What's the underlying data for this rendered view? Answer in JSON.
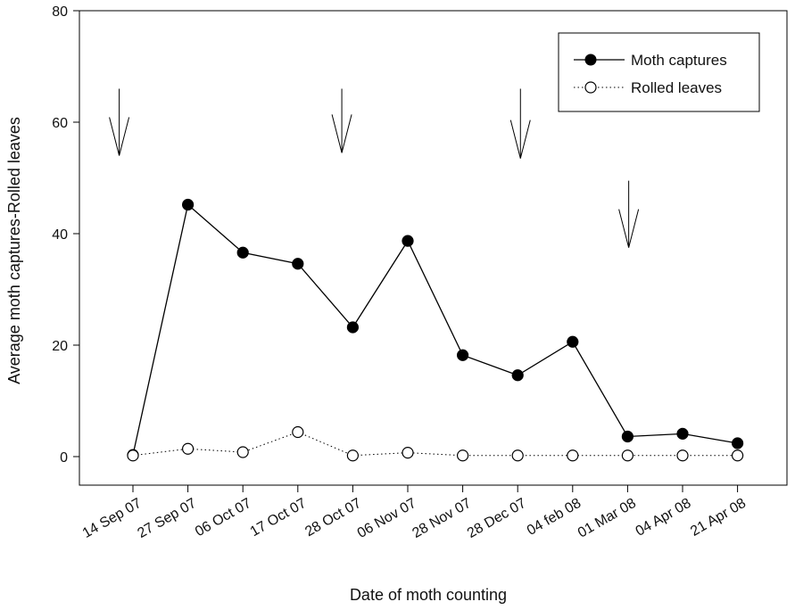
{
  "chart_data": {
    "type": "line",
    "xlabel": "Date of moth counting",
    "ylabel": "Average moth captures-Rolled leaves",
    "ylim": [
      0,
      80
    ],
    "yticks": [
      0,
      20,
      40,
      60,
      80
    ],
    "grid": false,
    "legend_position": "top-right",
    "categories": [
      "14 Sep 07",
      "27 Sep 07",
      "06 Oct 07",
      "17 Oct 07",
      "28 Oct 07",
      "06 Nov 07",
      "28 Nov 07",
      "28 Dec 07",
      "04 feb 08",
      "01 Mar 08",
      "04 Apr 08",
      "21 Apr 08"
    ],
    "series": [
      {
        "name": "Moth captures",
        "marker": "filled-circle",
        "line_style": "solid",
        "color": "#000000",
        "values": [
          0.3,
          45.2,
          36.6,
          34.6,
          23.2,
          38.7,
          18.2,
          14.6,
          20.6,
          3.6,
          4.1,
          2.4
        ]
      },
      {
        "name": "Rolled leaves",
        "marker": "open-circle",
        "line_style": "dotted",
        "color": "#000000",
        "values": [
          0.2,
          1.4,
          0.8,
          4.4,
          0.2,
          0.7,
          0.2,
          0.2,
          0.2,
          0.2,
          0.2,
          0.2
        ]
      }
    ],
    "annotations": [
      {
        "kind": "down-arrow",
        "x_category_index": -0.25,
        "y_from": 66,
        "y_to": 54
      },
      {
        "kind": "down-arrow",
        "x_category_index": 3.8,
        "y_from": 66,
        "y_to": 54.5
      },
      {
        "kind": "down-arrow",
        "x_category_index": 7.05,
        "y_from": 66,
        "y_to": 53.5
      },
      {
        "kind": "down-arrow",
        "x_category_index": 9.02,
        "y_from": 49.5,
        "y_to": 37.5
      }
    ]
  }
}
